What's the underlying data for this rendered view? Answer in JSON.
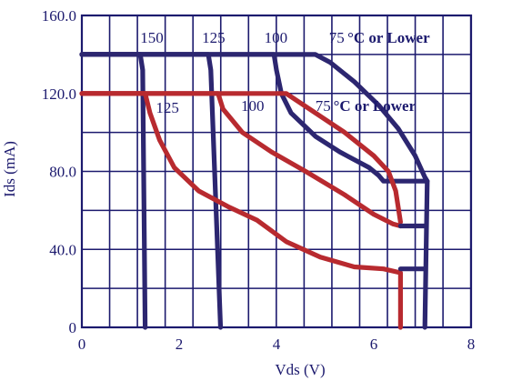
{
  "chart_data": {
    "type": "line",
    "xlabel": "Vds (V)",
    "ylabel": "Ids (mA)",
    "xlim": [
      0,
      8
    ],
    "ylim": [
      0,
      160
    ],
    "x_ticks": [
      0,
      2,
      4,
      6,
      8
    ],
    "x_tick_labels": [
      "0",
      "2",
      "4",
      "6",
      "8"
    ],
    "y_ticks": [
      0,
      40,
      80,
      120,
      160
    ],
    "y_tick_labels": [
      "0",
      "40.0",
      "80.0",
      "120.0",
      "160.0"
    ],
    "grid": true,
    "grid_x_step": 0.571,
    "grid_y_step": 20,
    "colors": {
      "grid": "#1c1a6e",
      "blue_series": "#2c2670",
      "red_series": "#b82a2f",
      "text": "#1c1a6e"
    },
    "series": [
      {
        "group": "blue",
        "temperature": "150",
        "points": [
          [
            0,
            140
          ],
          [
            1.2,
            140
          ],
          [
            1.25,
            132
          ],
          [
            1.3,
            0
          ]
        ]
      },
      {
        "group": "blue",
        "temperature": "125",
        "points": [
          [
            0,
            140
          ],
          [
            2.6,
            140
          ],
          [
            2.65,
            132
          ],
          [
            2.85,
            0
          ]
        ]
      },
      {
        "group": "blue",
        "temperature": "100",
        "points": [
          [
            0,
            140
          ],
          [
            3.95,
            140
          ],
          [
            4.0,
            132
          ],
          [
            4.1,
            120
          ],
          [
            4.3,
            110
          ],
          [
            4.8,
            98
          ],
          [
            5.3,
            90
          ],
          [
            5.9,
            82
          ],
          [
            6.1,
            78
          ],
          [
            6.2,
            75
          ],
          [
            7.1,
            75
          ],
          [
            7.05,
            0
          ]
        ]
      },
      {
        "group": "blue",
        "temperature": "75°C or Lower",
        "points": [
          [
            0,
            140
          ],
          [
            4.8,
            140
          ],
          [
            5.1,
            136
          ],
          [
            5.6,
            126
          ],
          [
            6.1,
            114
          ],
          [
            6.5,
            102
          ],
          [
            6.85,
            88
          ],
          [
            7.05,
            77
          ],
          [
            7.1,
            75
          ]
        ]
      },
      {
        "group": "red",
        "temperature": "125",
        "points": [
          [
            0,
            120
          ],
          [
            1.3,
            120
          ],
          [
            1.4,
            110
          ],
          [
            1.6,
            96
          ],
          [
            1.9,
            82
          ],
          [
            2.4,
            70
          ],
          [
            3.0,
            62
          ],
          [
            3.6,
            55
          ],
          [
            4.2,
            44
          ],
          [
            4.9,
            36
          ],
          [
            5.6,
            31
          ],
          [
            6.2,
            30
          ],
          [
            6.55,
            28
          ],
          [
            6.55,
            0
          ]
        ]
      },
      {
        "group": "red",
        "temperature": "100",
        "points": [
          [
            0,
            120
          ],
          [
            2.8,
            120
          ],
          [
            2.9,
            112
          ],
          [
            3.3,
            100
          ],
          [
            3.9,
            90
          ],
          [
            4.6,
            80
          ],
          [
            5.4,
            68
          ],
          [
            6.0,
            58
          ],
          [
            6.4,
            53
          ],
          [
            6.55,
            52
          ]
        ]
      },
      {
        "group": "red",
        "temperature": "75°C or Lower",
        "points": [
          [
            0,
            120
          ],
          [
            4.2,
            120
          ],
          [
            4.8,
            110
          ],
          [
            5.4,
            100
          ],
          [
            6.0,
            88
          ],
          [
            6.3,
            80
          ],
          [
            6.45,
            70
          ],
          [
            6.55,
            54
          ]
        ]
      },
      {
        "group": "blue",
        "temperature": "",
        "points": [
          [
            6.55,
            52
          ],
          [
            7.05,
            52
          ]
        ]
      },
      {
        "group": "blue",
        "temperature": "",
        "points": [
          [
            6.55,
            30
          ],
          [
            7.05,
            30
          ]
        ]
      }
    ],
    "annotations_blue": [
      {
        "text": "150",
        "x": 1.2,
        "y": 146
      },
      {
        "text": "125",
        "x": 2.47,
        "y": 146
      },
      {
        "text": "100",
        "x": 3.75,
        "y": 146
      },
      {
        "text": "75",
        "x": 5.08,
        "y": 146
      },
      {
        "text": "°C or Lower",
        "x": 5.46,
        "y": 146,
        "bold": true
      }
    ],
    "annotations_red": [
      {
        "text": "125",
        "x": 1.52,
        "y": 110
      },
      {
        "text": "100",
        "x": 3.27,
        "y": 111
      },
      {
        "text": "75",
        "x": 4.8,
        "y": 111
      },
      {
        "text": "°C or Lower",
        "x": 5.17,
        "y": 111,
        "bold": true
      }
    ]
  }
}
